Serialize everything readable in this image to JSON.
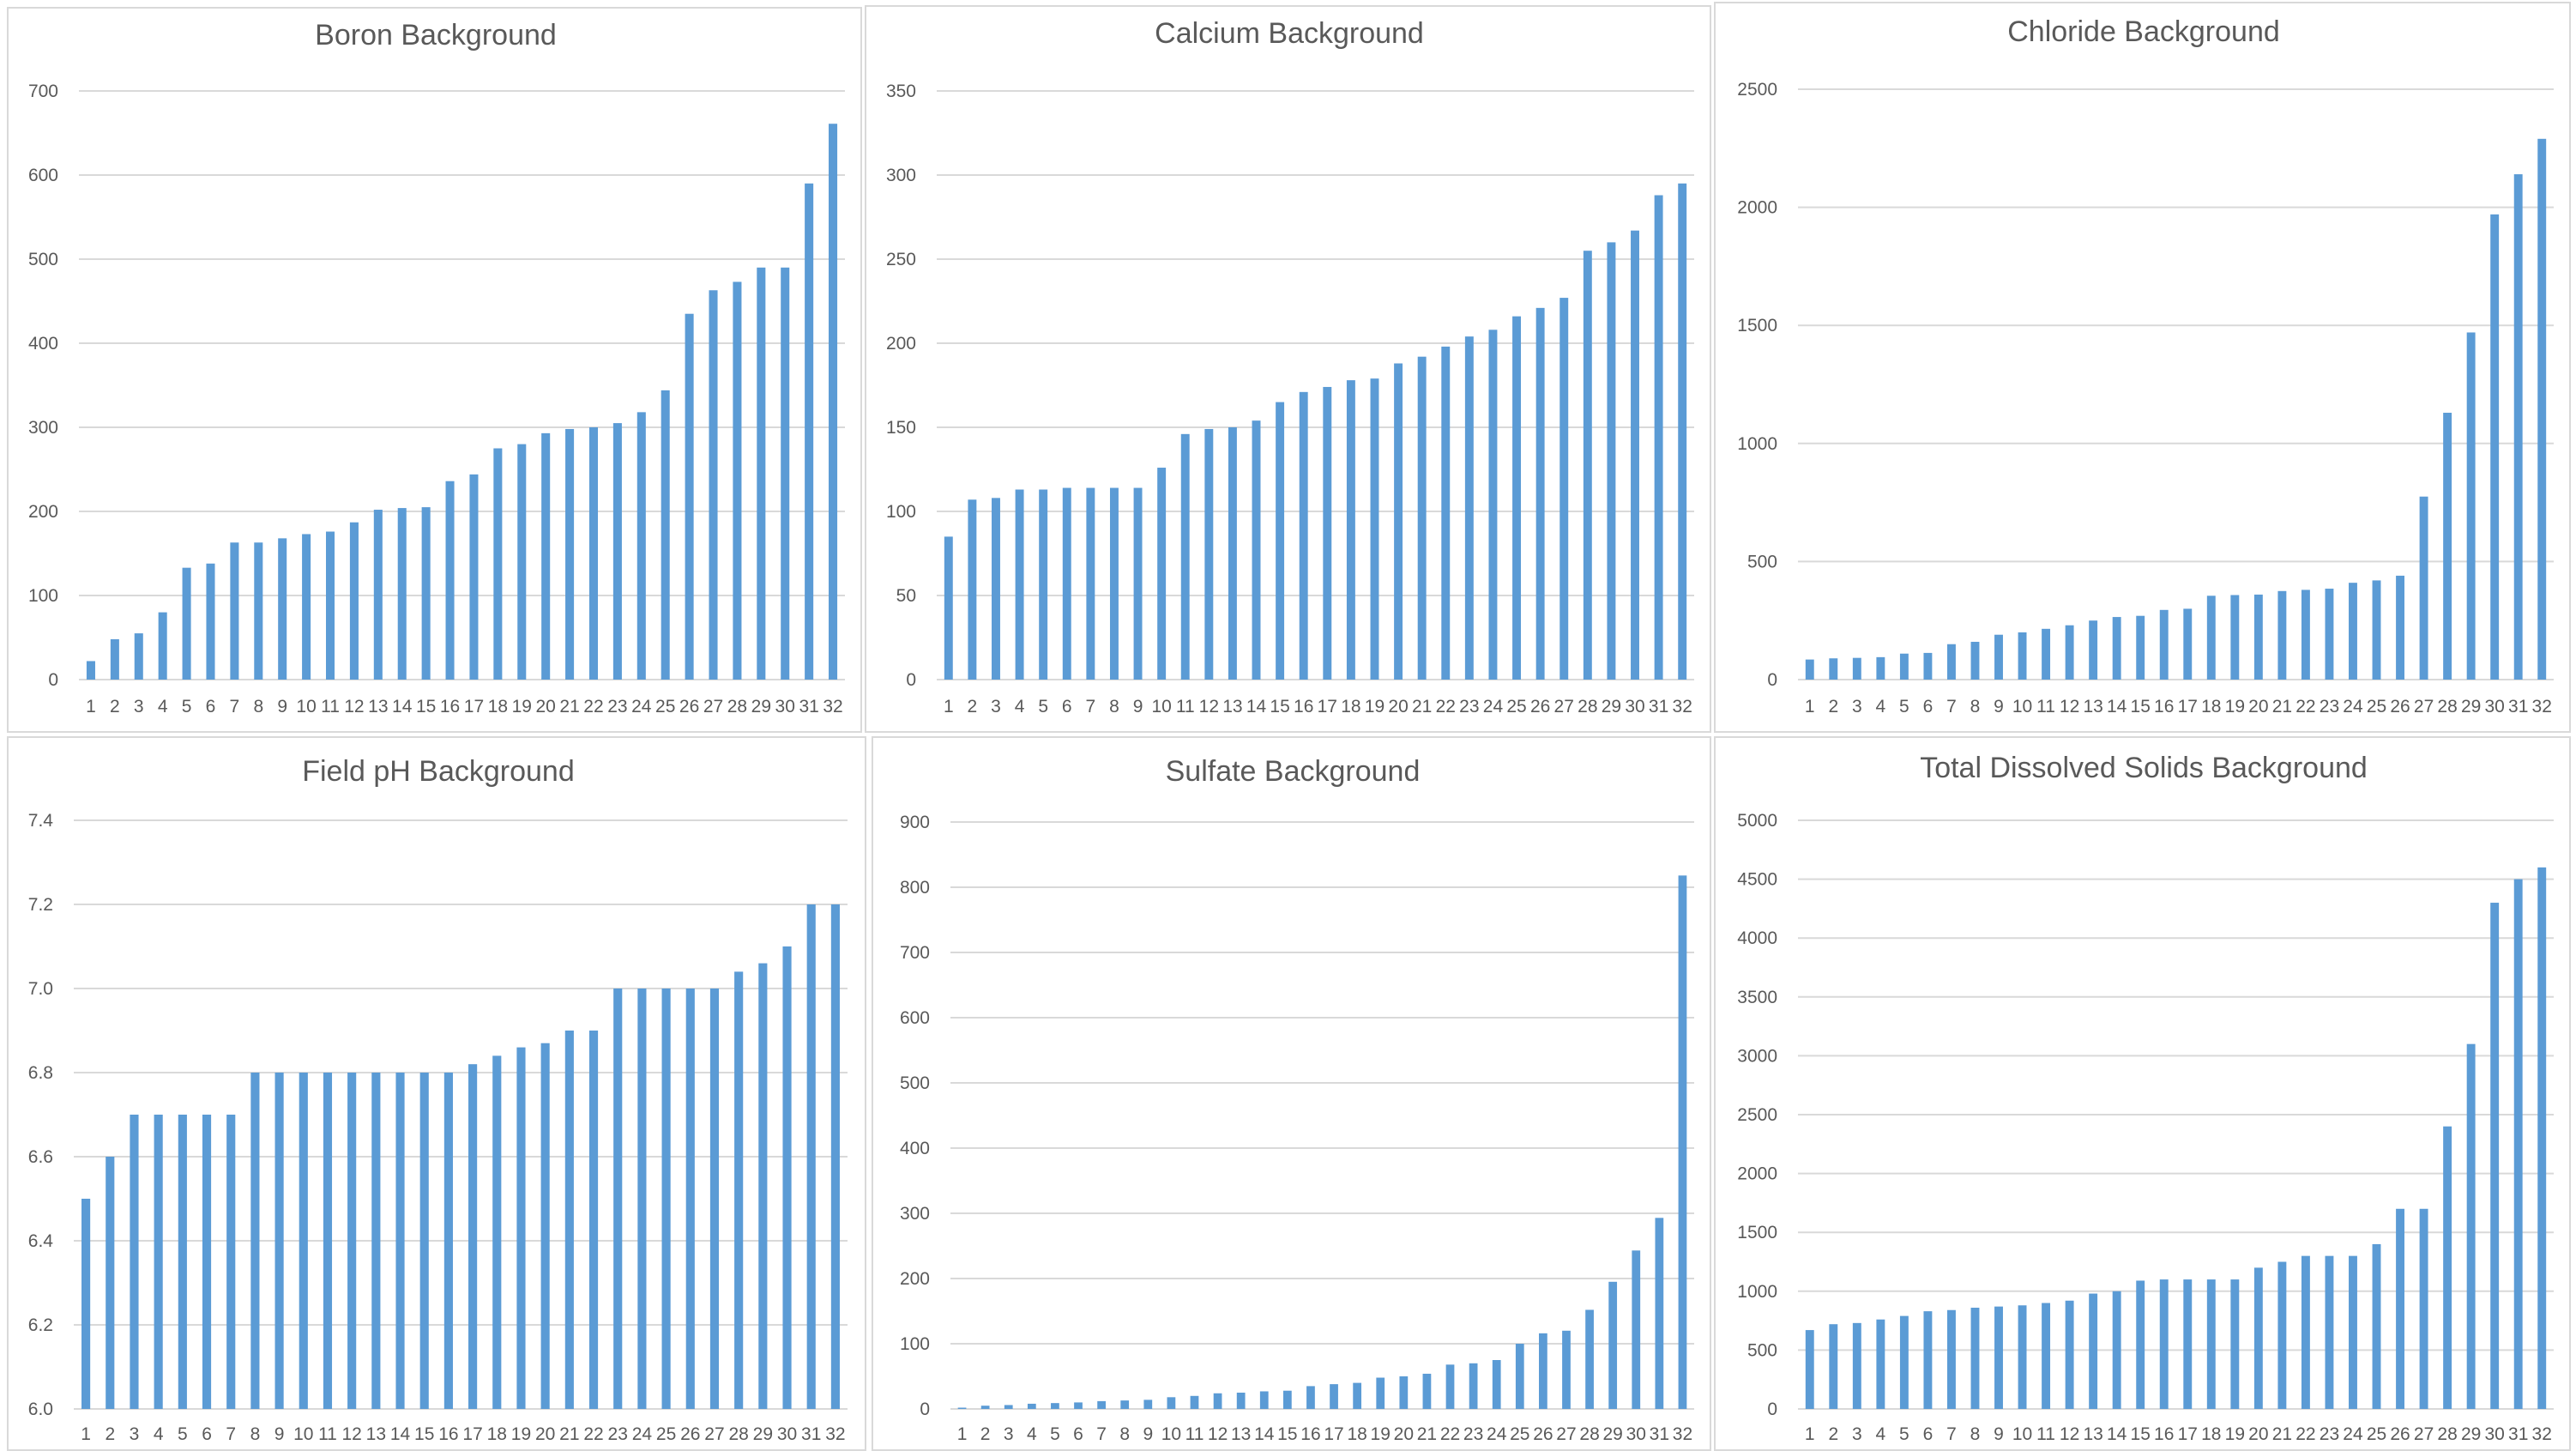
{
  "chart_data": [
    {
      "type": "bar",
      "title": "Boron Background",
      "categories": [
        "1",
        "2",
        "3",
        "4",
        "5",
        "6",
        "7",
        "8",
        "9",
        "10",
        "11",
        "12",
        "13",
        "14",
        "15",
        "16",
        "17",
        "18",
        "19",
        "20",
        "21",
        "22",
        "23",
        "24",
        "25",
        "26",
        "27",
        "28",
        "29",
        "30",
        "31",
        "32"
      ],
      "values": [
        22,
        48,
        55,
        80,
        133,
        138,
        163,
        163,
        168,
        173,
        176,
        187,
        202,
        204,
        205,
        236,
        244,
        275,
        280,
        293,
        298,
        300,
        305,
        318,
        344,
        435,
        463,
        473,
        490,
        490,
        590,
        661
      ],
      "ylim": [
        0,
        700
      ],
      "yticks": [
        0,
        100,
        200,
        300,
        400,
        500,
        600,
        700
      ],
      "grid": true,
      "color": "#5b9bd5"
    },
    {
      "type": "bar",
      "title": "Calcium Background",
      "categories": [
        "1",
        "2",
        "3",
        "4",
        "5",
        "6",
        "7",
        "8",
        "9",
        "10",
        "11",
        "12",
        "13",
        "14",
        "15",
        "16",
        "17",
        "18",
        "19",
        "20",
        "21",
        "22",
        "23",
        "24",
        "25",
        "26",
        "27",
        "28",
        "29",
        "30",
        "31",
        "32"
      ],
      "values": [
        85,
        107,
        108,
        113,
        113,
        114,
        114,
        114,
        114,
        126,
        146,
        149,
        150,
        154,
        165,
        171,
        174,
        178,
        179,
        188,
        192,
        198,
        204,
        208,
        216,
        221,
        227,
        255,
        260,
        267,
        288,
        295
      ],
      "ylim": [
        0,
        350
      ],
      "yticks": [
        0,
        50,
        100,
        150,
        200,
        250,
        300,
        350
      ],
      "grid": true,
      "color": "#5b9bd5"
    },
    {
      "type": "bar",
      "title": "Chloride Background",
      "categories": [
        "1",
        "2",
        "3",
        "4",
        "5",
        "6",
        "7",
        "8",
        "9",
        "10",
        "11",
        "12",
        "13",
        "14",
        "15",
        "16",
        "17",
        "18",
        "19",
        "20",
        "21",
        "22",
        "23",
        "24",
        "25",
        "26",
        "27",
        "28",
        "29",
        "30",
        "31",
        "32"
      ],
      "values": [
        85,
        90,
        92,
        95,
        110,
        113,
        150,
        160,
        190,
        200,
        215,
        230,
        250,
        265,
        270,
        295,
        300,
        355,
        358,
        360,
        375,
        380,
        385,
        410,
        420,
        440,
        775,
        1130,
        1470,
        1970,
        2140,
        2290
      ],
      "ylim": [
        0,
        2500
      ],
      "yticks": [
        0,
        500,
        1000,
        1500,
        2000,
        2500
      ],
      "grid": true,
      "color": "#5b9bd5"
    },
    {
      "type": "bar",
      "title": "Field pH Background",
      "categories": [
        "1",
        "2",
        "3",
        "4",
        "5",
        "6",
        "7",
        "8",
        "9",
        "10",
        "11",
        "12",
        "13",
        "14",
        "15",
        "16",
        "17",
        "18",
        "19",
        "20",
        "21",
        "22",
        "23",
        "24",
        "25",
        "26",
        "27",
        "28",
        "29",
        "30",
        "31",
        "32"
      ],
      "values": [
        6.5,
        6.6,
        6.7,
        6.7,
        6.7,
        6.7,
        6.7,
        6.8,
        6.8,
        6.8,
        6.8,
        6.8,
        6.8,
        6.8,
        6.8,
        6.8,
        6.82,
        6.84,
        6.86,
        6.87,
        6.9,
        6.9,
        7.0,
        7.0,
        7.0,
        7.0,
        7.0,
        7.04,
        7.06,
        7.1,
        7.2,
        7.2
      ],
      "ylim": [
        6.0,
        7.4
      ],
      "yticks": [
        "6.0",
        "6.2",
        "6.4",
        "6.6",
        "6.8",
        "7.0",
        "7.2",
        "7.4"
      ],
      "grid": true,
      "color": "#5b9bd5"
    },
    {
      "type": "bar",
      "title": "Sulfate Background",
      "categories": [
        "1",
        "2",
        "3",
        "4",
        "5",
        "6",
        "7",
        "8",
        "9",
        "10",
        "11",
        "12",
        "13",
        "14",
        "15",
        "16",
        "17",
        "18",
        "19",
        "20",
        "21",
        "22",
        "23",
        "24",
        "25",
        "26",
        "27",
        "28",
        "29",
        "30",
        "31",
        "32"
      ],
      "values": [
        2,
        5,
        6,
        8,
        9,
        10,
        12,
        13,
        14,
        18,
        20,
        24,
        25,
        27,
        28,
        35,
        38,
        40,
        48,
        50,
        54,
        68,
        70,
        75,
        100,
        116,
        120,
        152,
        195,
        243,
        293,
        818
      ],
      "ylim": [
        0,
        900
      ],
      "yticks": [
        0,
        100,
        200,
        300,
        400,
        500,
        600,
        700,
        800,
        900
      ],
      "grid": true,
      "color": "#5b9bd5"
    },
    {
      "type": "bar",
      "title": "Total Dissolved Solids Background",
      "categories": [
        "1",
        "2",
        "3",
        "4",
        "5",
        "6",
        "7",
        "8",
        "9",
        "10",
        "11",
        "12",
        "13",
        "14",
        "15",
        "16",
        "17",
        "18",
        "19",
        "20",
        "21",
        "22",
        "23",
        "24",
        "25",
        "26",
        "27",
        "28",
        "29",
        "30",
        "31",
        "32"
      ],
      "values": [
        670,
        720,
        730,
        760,
        790,
        830,
        840,
        860,
        870,
        880,
        900,
        920,
        980,
        1000,
        1090,
        1100,
        1100,
        1100,
        1100,
        1200,
        1250,
        1300,
        1300,
        1300,
        1400,
        1700,
        1700,
        2400,
        3100,
        4300,
        4500,
        4600
      ],
      "ylim": [
        0,
        5000
      ],
      "yticks": [
        0,
        500,
        1000,
        1500,
        2000,
        2500,
        3000,
        3500,
        4000,
        4500,
        5000
      ],
      "grid": true,
      "color": "#5b9bd5"
    }
  ]
}
